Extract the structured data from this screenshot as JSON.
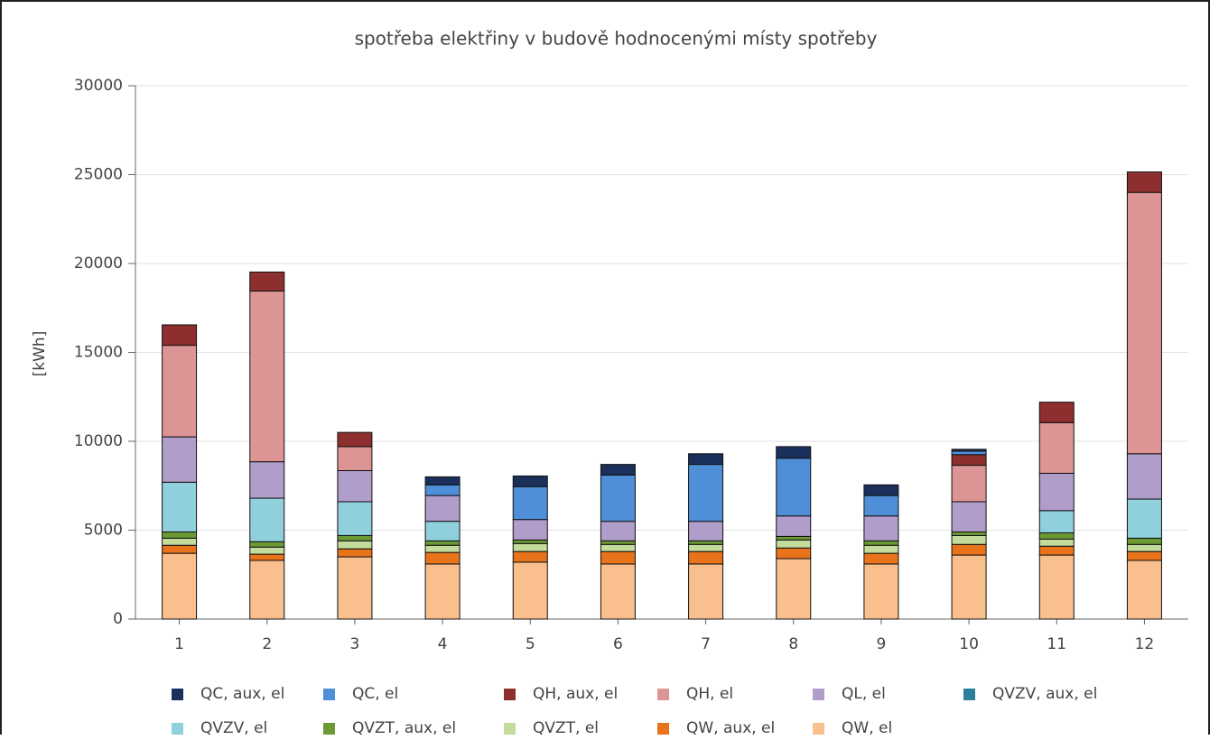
{
  "chart_data": {
    "type": "stacked_bar",
    "title": "spotřeba elektřiny v budově hodnocenými místy spotřeby",
    "y_label": "[kWh]",
    "categories": [
      "1",
      "2",
      "3",
      "4",
      "5",
      "6",
      "7",
      "8",
      "9",
      "10",
      "11",
      "12"
    ],
    "ylim": [
      0,
      30000
    ],
    "yticks": [
      0,
      5000,
      10000,
      15000,
      20000,
      25000,
      30000
    ],
    "grid": true,
    "series": [
      {
        "name": "QC, aux, el",
        "color": "#1a2f5a",
        "values": [
          0,
          0,
          0,
          450,
          600,
          600,
          600,
          650,
          600,
          100,
          0,
          0
        ]
      },
      {
        "name": "QC, el",
        "color": "#4f8fd8",
        "values": [
          0,
          0,
          0,
          600,
          1850,
          2600,
          3200,
          3250,
          1150,
          200,
          0,
          0
        ]
      },
      {
        "name": "QH, aux, el",
        "color": "#8e2f2f",
        "values": [
          1150,
          1070,
          800,
          0,
          0,
          0,
          0,
          0,
          0,
          600,
          1150,
          1150
        ]
      },
      {
        "name": "QH, el",
        "color": "#dc9494",
        "values": [
          5150,
          9600,
          1350,
          0,
          0,
          0,
          0,
          0,
          0,
          2050,
          2850,
          14700
        ]
      },
      {
        "name": "QL, el",
        "color": "#b19dc9",
        "values": [
          2550,
          2050,
          1750,
          1450,
          1150,
          1100,
          1100,
          1150,
          1400,
          1700,
          2100,
          2550
        ]
      },
      {
        "name": "QVZV, aux, el",
        "color": "#2c7f9c",
        "values": [
          0,
          0,
          0,
          0,
          0,
          0,
          0,
          0,
          0,
          0,
          0,
          0
        ]
      },
      {
        "name": "QVZV, el",
        "color": "#90cfdc",
        "values": [
          2800,
          2450,
          1900,
          1100,
          0,
          0,
          0,
          0,
          0,
          0,
          1250,
          2200
        ]
      },
      {
        "name": "QVZT, aux, el",
        "color": "#6b9a35",
        "values": [
          350,
          300,
          300,
          250,
          200,
          200,
          200,
          200,
          250,
          200,
          350,
          350
        ]
      },
      {
        "name": "QVZT, el",
        "color": "#c3dc9b",
        "values": [
          400,
          400,
          450,
          400,
          450,
          400,
          400,
          450,
          450,
          500,
          400,
          400
        ]
      },
      {
        "name": "QW, aux, el",
        "color": "#e8731b",
        "values": [
          450,
          350,
          450,
          650,
          600,
          700,
          700,
          600,
          600,
          600,
          500,
          500
        ]
      },
      {
        "name": "QW, el",
        "color": "#f9bf8d",
        "values": [
          3700,
          3300,
          3500,
          3100,
          3200,
          3100,
          3100,
          3400,
          3100,
          3600,
          3600,
          3300
        ]
      }
    ]
  }
}
